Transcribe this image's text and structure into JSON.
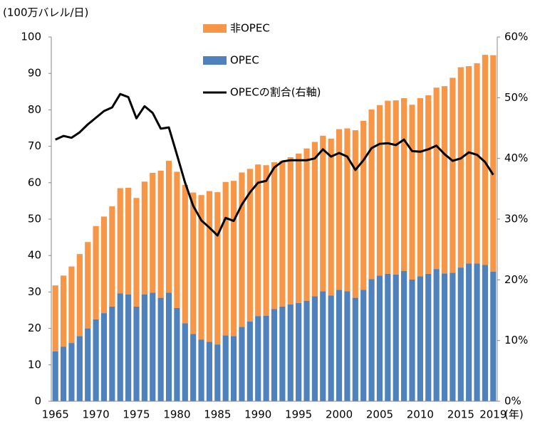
{
  "chart_data": {
    "type": "bar",
    "y_label": "(100万バレル/日)",
    "x_label": "(年)",
    "stacked": true,
    "categories": [
      "1965",
      null,
      null,
      null,
      null,
      "1970",
      null,
      null,
      null,
      null,
      "1975",
      null,
      null,
      null,
      null,
      "1980",
      null,
      null,
      null,
      null,
      "1985",
      null,
      null,
      null,
      null,
      "1990",
      null,
      null,
      null,
      null,
      "1995",
      null,
      null,
      null,
      null,
      "2000",
      null,
      null,
      null,
      null,
      "2005",
      null,
      null,
      null,
      null,
      "2010",
      null,
      null,
      null,
      null,
      "2015",
      null,
      null,
      null,
      "2019"
    ],
    "series": [
      {
        "name": "OPEC",
        "color": "#4f81bd",
        "values": [
          13.7,
          15.0,
          16.0,
          17.9,
          20.0,
          22.5,
          24.2,
          26.0,
          29.6,
          29.3,
          26.0,
          29.3,
          29.8,
          28.4,
          29.8,
          25.6,
          21.4,
          18.5,
          16.9,
          16.3,
          15.6,
          18.1,
          17.9,
          20.4,
          21.9,
          23.4,
          23.5,
          25.3,
          26.0,
          26.6,
          27.0,
          27.6,
          28.8,
          30.2,
          29.0,
          30.6,
          30.2,
          28.4,
          30.6,
          33.5,
          34.5,
          35.0,
          34.8,
          35.8,
          33.4,
          34.3,
          35.0,
          36.3,
          35.1,
          35.3,
          36.7,
          37.8,
          37.8,
          37.4,
          35.6
        ]
      },
      {
        "name": "非OPEC",
        "color": "#f79646",
        "values": [
          18.1,
          19.5,
          21.0,
          22.5,
          23.7,
          25.6,
          26.5,
          27.5,
          28.9,
          29.3,
          29.8,
          31.0,
          32.9,
          34.9,
          36.2,
          37.4,
          38.0,
          38.8,
          39.7,
          41.4,
          41.8,
          42.1,
          42.6,
          42.4,
          41.9,
          41.6,
          41.3,
          40.3,
          40.0,
          40.4,
          41.0,
          41.8,
          42.4,
          42.7,
          43.1,
          44.1,
          44.7,
          46.0,
          46.4,
          46.6,
          46.8,
          47.5,
          47.8,
          47.4,
          48.0,
          48.9,
          49.0,
          49.8,
          51.4,
          53.5,
          55.0,
          54.2,
          55.0,
          57.7,
          59.4
        ]
      },
      {
        "name": "OPECの割合(右軸)",
        "color": "#000000",
        "type": "line",
        "axis": "y2",
        "values": [
          43.1,
          43.7,
          43.4,
          44.3,
          45.6,
          46.7,
          47.8,
          48.4,
          50.6,
          50.1,
          46.6,
          48.6,
          47.5,
          44.9,
          45.1,
          40.6,
          36.0,
          32.2,
          29.8,
          28.6,
          27.3,
          30.2,
          29.7,
          32.4,
          34.4,
          36.0,
          36.3,
          38.5,
          39.5,
          39.7,
          39.7,
          39.7,
          40.0,
          41.5,
          40.3,
          40.9,
          40.3,
          38.1,
          39.7,
          41.7,
          42.4,
          42.5,
          42.2,
          43.1,
          41.2,
          41.1,
          41.5,
          42.1,
          40.7,
          39.6,
          40.0,
          41.0,
          40.6,
          39.4,
          37.3
        ]
      }
    ],
    "legend_order": [
      1,
      0,
      2
    ],
    "ylim": [
      0,
      100
    ],
    "yticks": [
      0,
      10,
      20,
      30,
      40,
      50,
      60,
      70,
      80,
      90,
      100
    ],
    "y2lim": [
      0,
      60
    ],
    "y2ticks": [
      {
        "value": 0,
        "label": "0%"
      },
      {
        "value": 10,
        "label": "10%"
      },
      {
        "value": 20,
        "label": "20%"
      },
      {
        "value": 30,
        "label": "30%"
      },
      {
        "value": 40,
        "label": "40%"
      },
      {
        "value": 50,
        "label": "50%"
      },
      {
        "value": 60,
        "label": "60%"
      }
    ],
    "grid": false
  }
}
